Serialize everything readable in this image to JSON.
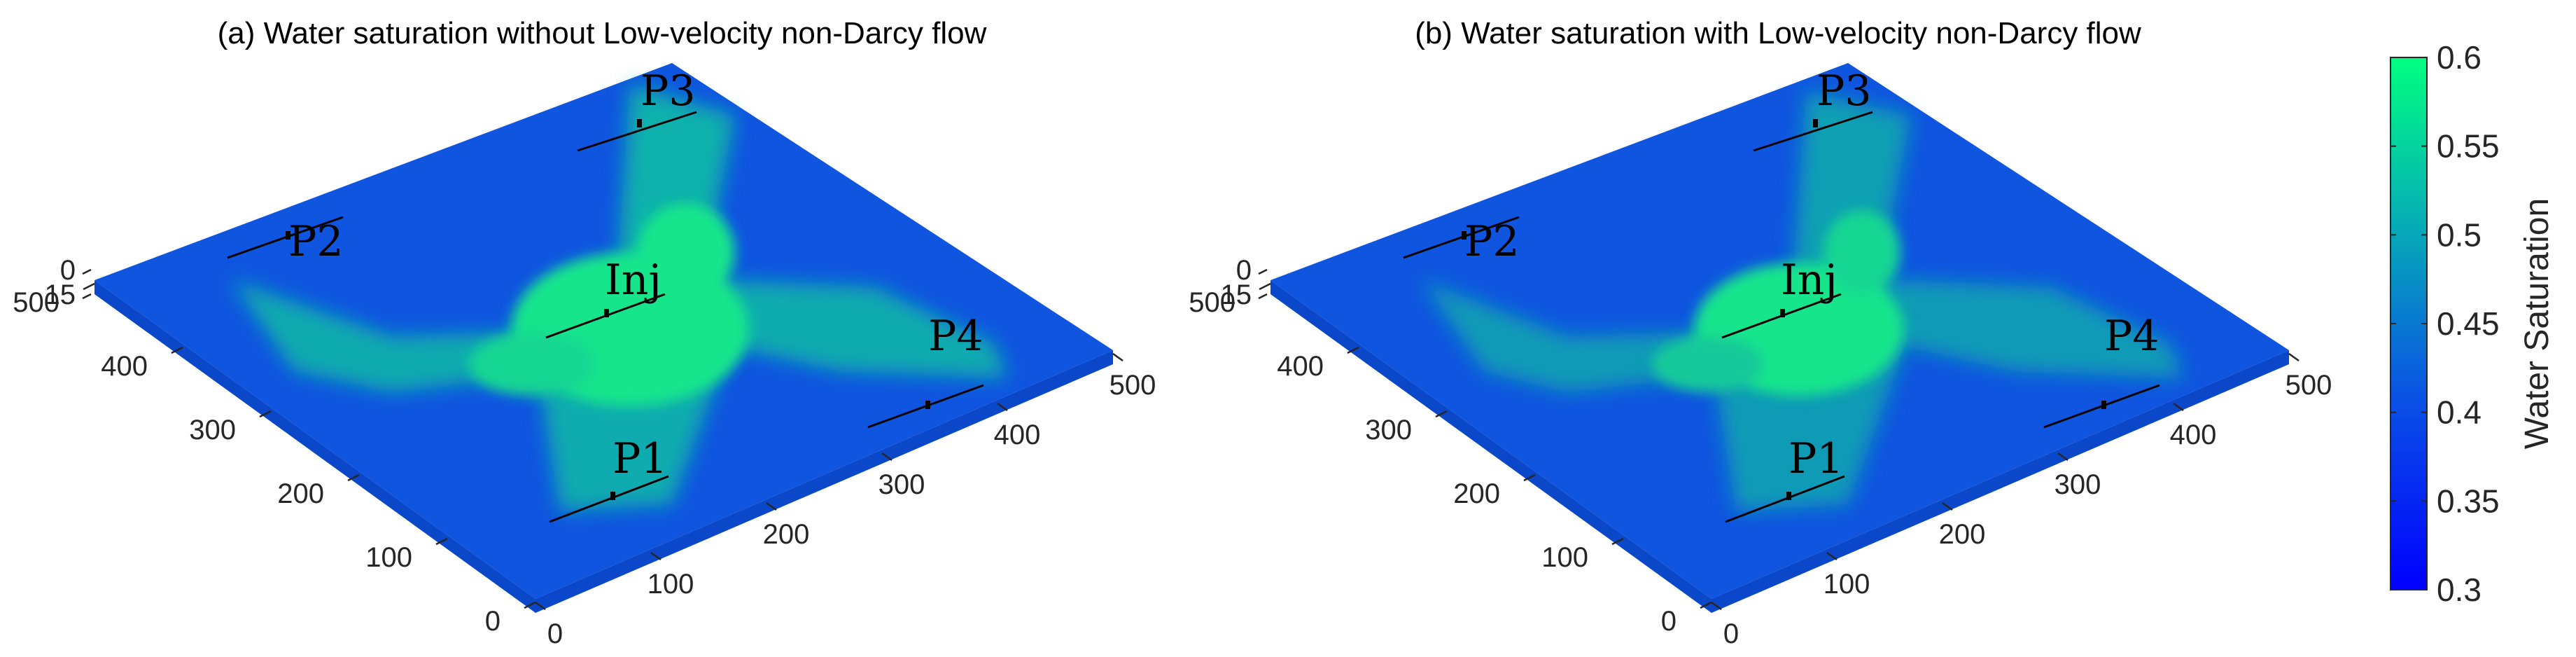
{
  "chart_data": [
    {
      "type": "heatmap",
      "title": "(a) Water saturation without Low-velocity non-Darcy flow",
      "x_ticks": [
        "0",
        "100",
        "200",
        "300",
        "400",
        "500"
      ],
      "y_ticks": [
        "0",
        "100",
        "200",
        "300",
        "400",
        "500"
      ],
      "z_ticks": [
        "0",
        "15"
      ],
      "xlim": [
        0,
        500
      ],
      "ylim": [
        0,
        500
      ],
      "zlim": [
        0,
        15
      ],
      "wells": [
        {
          "label": "Inj",
          "x": 250,
          "y": 250
        },
        {
          "label": "P1",
          "x": 250,
          "y": 50
        },
        {
          "label": "P2",
          "x": 50,
          "y": 450
        },
        {
          "label": "P3",
          "x": 450,
          "y": 450
        },
        {
          "label": "P4",
          "x": 450,
          "y": 50
        }
      ]
    },
    {
      "type": "heatmap",
      "title": "(b) Water saturation with Low-velocity non-Darcy flow",
      "x_ticks": [
        "0",
        "100",
        "200",
        "300",
        "400",
        "500"
      ],
      "y_ticks": [
        "0",
        "100",
        "200",
        "300",
        "400",
        "500"
      ],
      "z_ticks": [
        "0",
        "15"
      ],
      "xlim": [
        0,
        500
      ],
      "ylim": [
        0,
        500
      ],
      "zlim": [
        0,
        15
      ],
      "wells": [
        {
          "label": "Inj",
          "x": 250,
          "y": 250
        },
        {
          "label": "P1",
          "x": 250,
          "y": 50
        },
        {
          "label": "P2",
          "x": 50,
          "y": 450
        },
        {
          "label": "P3",
          "x": 450,
          "y": 450
        },
        {
          "label": "P4",
          "x": 450,
          "y": 50
        }
      ]
    }
  ],
  "colorbar": {
    "label": "Water Saturation",
    "min": 0.3,
    "max": 0.6,
    "ticks": [
      "0.3",
      "0.35",
      "0.4",
      "0.45",
      "0.5",
      "0.55",
      "0.6"
    ],
    "colors": {
      "low": "#0000ff",
      "background": "#0f55e0",
      "high": "#00ff80"
    }
  }
}
